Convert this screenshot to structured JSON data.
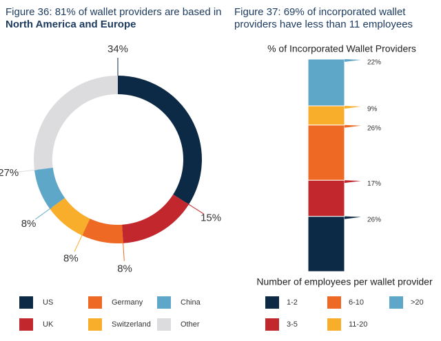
{
  "chart_data": [
    {
      "type": "donut",
      "title": "Figure 36: 81% of wallet providers are based in",
      "subtitle": "North America and Europe",
      "categories": [
        "US",
        "UK",
        "Germany",
        "Switzerland",
        "China",
        "Other"
      ],
      "values": [
        34,
        15,
        8,
        8,
        8,
        27
      ],
      "value_labels": [
        "34%",
        "15%",
        "8%",
        "8%",
        "8%",
        "27%"
      ],
      "colors": [
        "#0c2a45",
        "#c1272d",
        "#ee6a24",
        "#f8ae2b",
        "#5fa7c8",
        "#dcdcde"
      ]
    },
    {
      "type": "stacked_bar",
      "title": "Figure 37: 69% of incorporated wallet providers have less than 11 employees",
      "chart_title": "% of Incorporated Wallet Providers",
      "legend_title": "Number of employees per wallet provider",
      "series": [
        {
          "name": "1-2",
          "color": "#0c2a45",
          "values": [
            26
          ],
          "value_labels": [
            "26%"
          ]
        },
        {
          "name": "3-5",
          "color": "#c1272d",
          "values": [
            17
          ],
          "value_labels": [
            "17%"
          ]
        },
        {
          "name": "6-10",
          "color": "#ee6a24",
          "values": [
            26
          ],
          "value_labels": [
            "26%"
          ]
        },
        {
          "name": "11-20",
          "color": "#f8ae2b",
          "values": [
            9
          ],
          "value_labels": [
            "9%"
          ]
        },
        {
          "name": ">20",
          "color": "#5fa7c8",
          "values": [
            22
          ],
          "value_labels": [
            "22%"
          ]
        }
      ],
      "ylim": [
        0,
        100
      ]
    }
  ]
}
